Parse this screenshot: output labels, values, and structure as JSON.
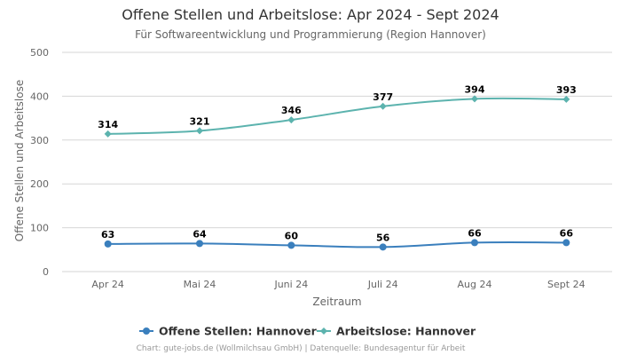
{
  "chart_data": {
    "type": "line",
    "title": "Offene Stellen und Arbeitslose: Apr 2024 - Sept 2024",
    "subtitle": "Für Softwareentwicklung und Programmierung (Region Hannover)",
    "xlabel": "Zeitraum",
    "ylabel": "Offene Stellen und Arbeitslose",
    "categories": [
      "Apr 24",
      "Mai 24",
      "Juni 24",
      "Juli 24",
      "Aug 24",
      "Sept 24"
    ],
    "ylim": [
      0,
      500
    ],
    "yticks": [
      0,
      100,
      200,
      300,
      400,
      500
    ],
    "grid": true,
    "legend_position": "bottom-center",
    "series": [
      {
        "name": "Offene Stellen: Hannover",
        "color": "#3a7fbd",
        "marker": "circle",
        "values": [
          63,
          64,
          60,
          56,
          66,
          66
        ]
      },
      {
        "name": "Arbeitslose: Hannover",
        "color": "#5cb3ae",
        "marker": "diamond",
        "values": [
          314,
          321,
          346,
          377,
          394,
          393
        ]
      }
    ],
    "credits": "Chart: gute-jobs.de (Wollmilchsau GmbH) | Datenquelle: Bundesagentur für Arbeit"
  }
}
